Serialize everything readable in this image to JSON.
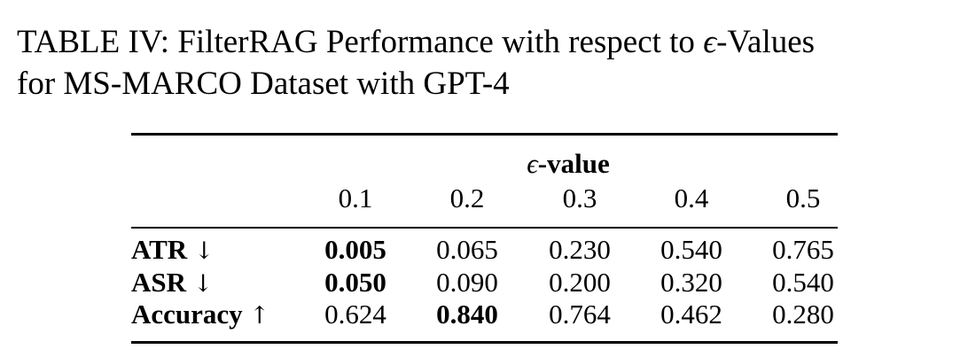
{
  "caption": {
    "line1_prefix": "TABLE IV: FilterRAG Performance with respect to ",
    "epsilon_symbol": "ϵ",
    "line1_suffix": "-Values",
    "line2": "for MS-MARCO Dataset with GPT-4"
  },
  "table": {
    "group_header": {
      "symbol": "ϵ",
      "text": "-value"
    },
    "columns": [
      "0.1",
      "0.2",
      "0.3",
      "0.4",
      "0.5"
    ],
    "rows": [
      {
        "metric": "ATR",
        "arrow": "↓",
        "values": [
          "0.005",
          "0.065",
          "0.230",
          "0.540",
          "0.765"
        ],
        "bold_index": 0
      },
      {
        "metric": "ASR",
        "arrow": "↓",
        "values": [
          "0.050",
          "0.090",
          "0.200",
          "0.320",
          "0.540"
        ],
        "bold_index": 0
      },
      {
        "metric": "Accuracy",
        "arrow": "↑",
        "values": [
          "0.624",
          "0.840",
          "0.764",
          "0.462",
          "0.280"
        ],
        "bold_index": 1
      }
    ]
  }
}
